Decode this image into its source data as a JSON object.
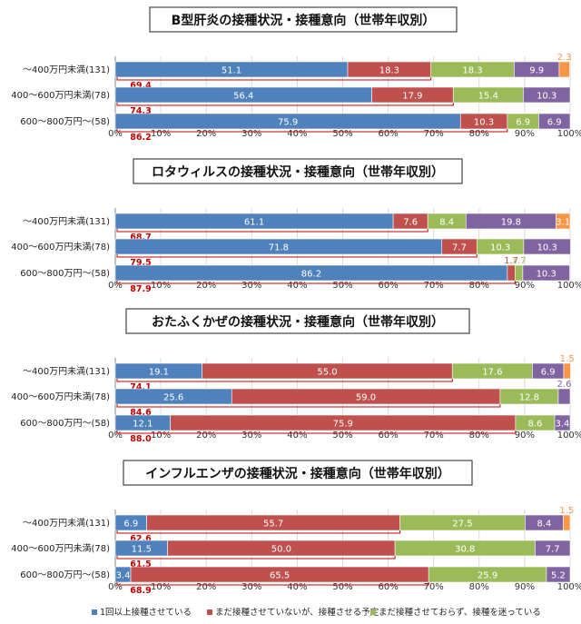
{
  "chart_data": [
    {
      "type": "bar",
      "orientation": "horizontal",
      "stacked": true,
      "title": "B型肝炎の接種状況・接種意向（世帯年収別）",
      "categories": [
        "～400万円未満(131)",
        "400～600万円未満(78)",
        "600～800万円～(58)"
      ],
      "series": [
        {
          "values": [
            51.1,
            56.4,
            75.9
          ]
        },
        {
          "values": [
            18.3,
            17.9,
            10.3
          ]
        },
        {
          "values": [
            18.3,
            15.4,
            6.9
          ]
        },
        {
          "values": [
            9.9,
            10.3,
            6.9
          ]
        },
        {
          "values": [
            2.3,
            0,
            0
          ]
        }
      ],
      "sum_labels": [
        "69.4",
        "74.3",
        "86.2"
      ],
      "xlim": [
        0,
        100
      ],
      "xticks": [
        "0%",
        "10%",
        "20%",
        "30%",
        "40%",
        "50%",
        "60%",
        "70%",
        "80%",
        "90%",
        "100%"
      ],
      "grid": true
    },
    {
      "type": "bar",
      "orientation": "horizontal",
      "stacked": true,
      "title": "ロタウィルスの接種状況・接種意向（世帯年収別）",
      "categories": [
        "～400万円未満(131)",
        "400～600万円未満(78)",
        "600～800万円～(58)"
      ],
      "series": [
        {
          "values": [
            61.1,
            71.8,
            86.2
          ]
        },
        {
          "values": [
            7.6,
            7.7,
            1.7
          ]
        },
        {
          "values": [
            8.4,
            10.3,
            1.7
          ]
        },
        {
          "values": [
            19.8,
            10.3,
            10.3
          ]
        },
        {
          "values": [
            3.1,
            0,
            0
          ]
        }
      ],
      "sum_labels": [
        "68.7",
        "79.5",
        "87.9"
      ],
      "xlim": [
        0,
        100
      ],
      "xticks": [
        "0%",
        "10%",
        "20%",
        "30%",
        "40%",
        "50%",
        "60%",
        "70%",
        "80%",
        "90%",
        "100%"
      ],
      "grid": true
    },
    {
      "type": "bar",
      "orientation": "horizontal",
      "stacked": true,
      "title": "おたふくかぜの接種状況・接種意向（世帯年収別）",
      "categories": [
        "～400万円未満(131)",
        "400～600万円未満(78)",
        "600～800万円～(58)"
      ],
      "series": [
        {
          "values": [
            19.1,
            25.6,
            12.1
          ]
        },
        {
          "values": [
            55.0,
            59.0,
            75.9
          ]
        },
        {
          "values": [
            17.6,
            12.8,
            8.6
          ]
        },
        {
          "values": [
            6.9,
            2.6,
            3.4
          ]
        },
        {
          "values": [
            1.5,
            0,
            0
          ]
        }
      ],
      "sum_labels": [
        "74.1",
        "84.6",
        "88.0"
      ],
      "xlim": [
        0,
        100
      ],
      "xticks": [
        "0%",
        "10%",
        "20%",
        "30%",
        "40%",
        "50%",
        "60%",
        "70%",
        "80%",
        "90%",
        "100%"
      ],
      "grid": true
    },
    {
      "type": "bar",
      "orientation": "horizontal",
      "stacked": true,
      "title": "インフルエンザの接種状況・接種意向（世帯年収別）",
      "categories": [
        "～400万円未満(131)",
        "400～600万円未満(78)",
        "600～800万円～(58)"
      ],
      "series": [
        {
          "values": [
            6.9,
            11.5,
            3.4
          ]
        },
        {
          "values": [
            55.7,
            50.0,
            65.5
          ]
        },
        {
          "values": [
            27.5,
            30.8,
            25.9
          ]
        },
        {
          "values": [
            8.4,
            7.7,
            5.2
          ]
        },
        {
          "values": [
            1.5,
            0,
            0
          ]
        }
      ],
      "sum_labels": [
        "62.6",
        "61.5",
        "68.9"
      ],
      "xlim": [
        0,
        100
      ],
      "xticks": [
        "0%",
        "10%",
        "20%",
        "30%",
        "40%",
        "50%",
        "60%",
        "70%",
        "80%",
        "90%",
        "100%"
      ],
      "grid": true
    }
  ],
  "legend": {
    "placement": "bottom",
    "items": [
      {
        "label": "1回以上接種させている",
        "color": "#4f81bd"
      },
      {
        "label": "まだ接種させていないが、接種させる予定",
        "color": "#c0504d"
      },
      {
        "label": "まだ接種させておらず、接種を迷っている",
        "color": "#9bbb59"
      }
    ]
  },
  "colors": {
    "series": [
      "#4f81bd",
      "#c0504d",
      "#9bbb59",
      "#8064a2",
      "#f79646"
    ],
    "sum_bracket": "#c00000"
  }
}
